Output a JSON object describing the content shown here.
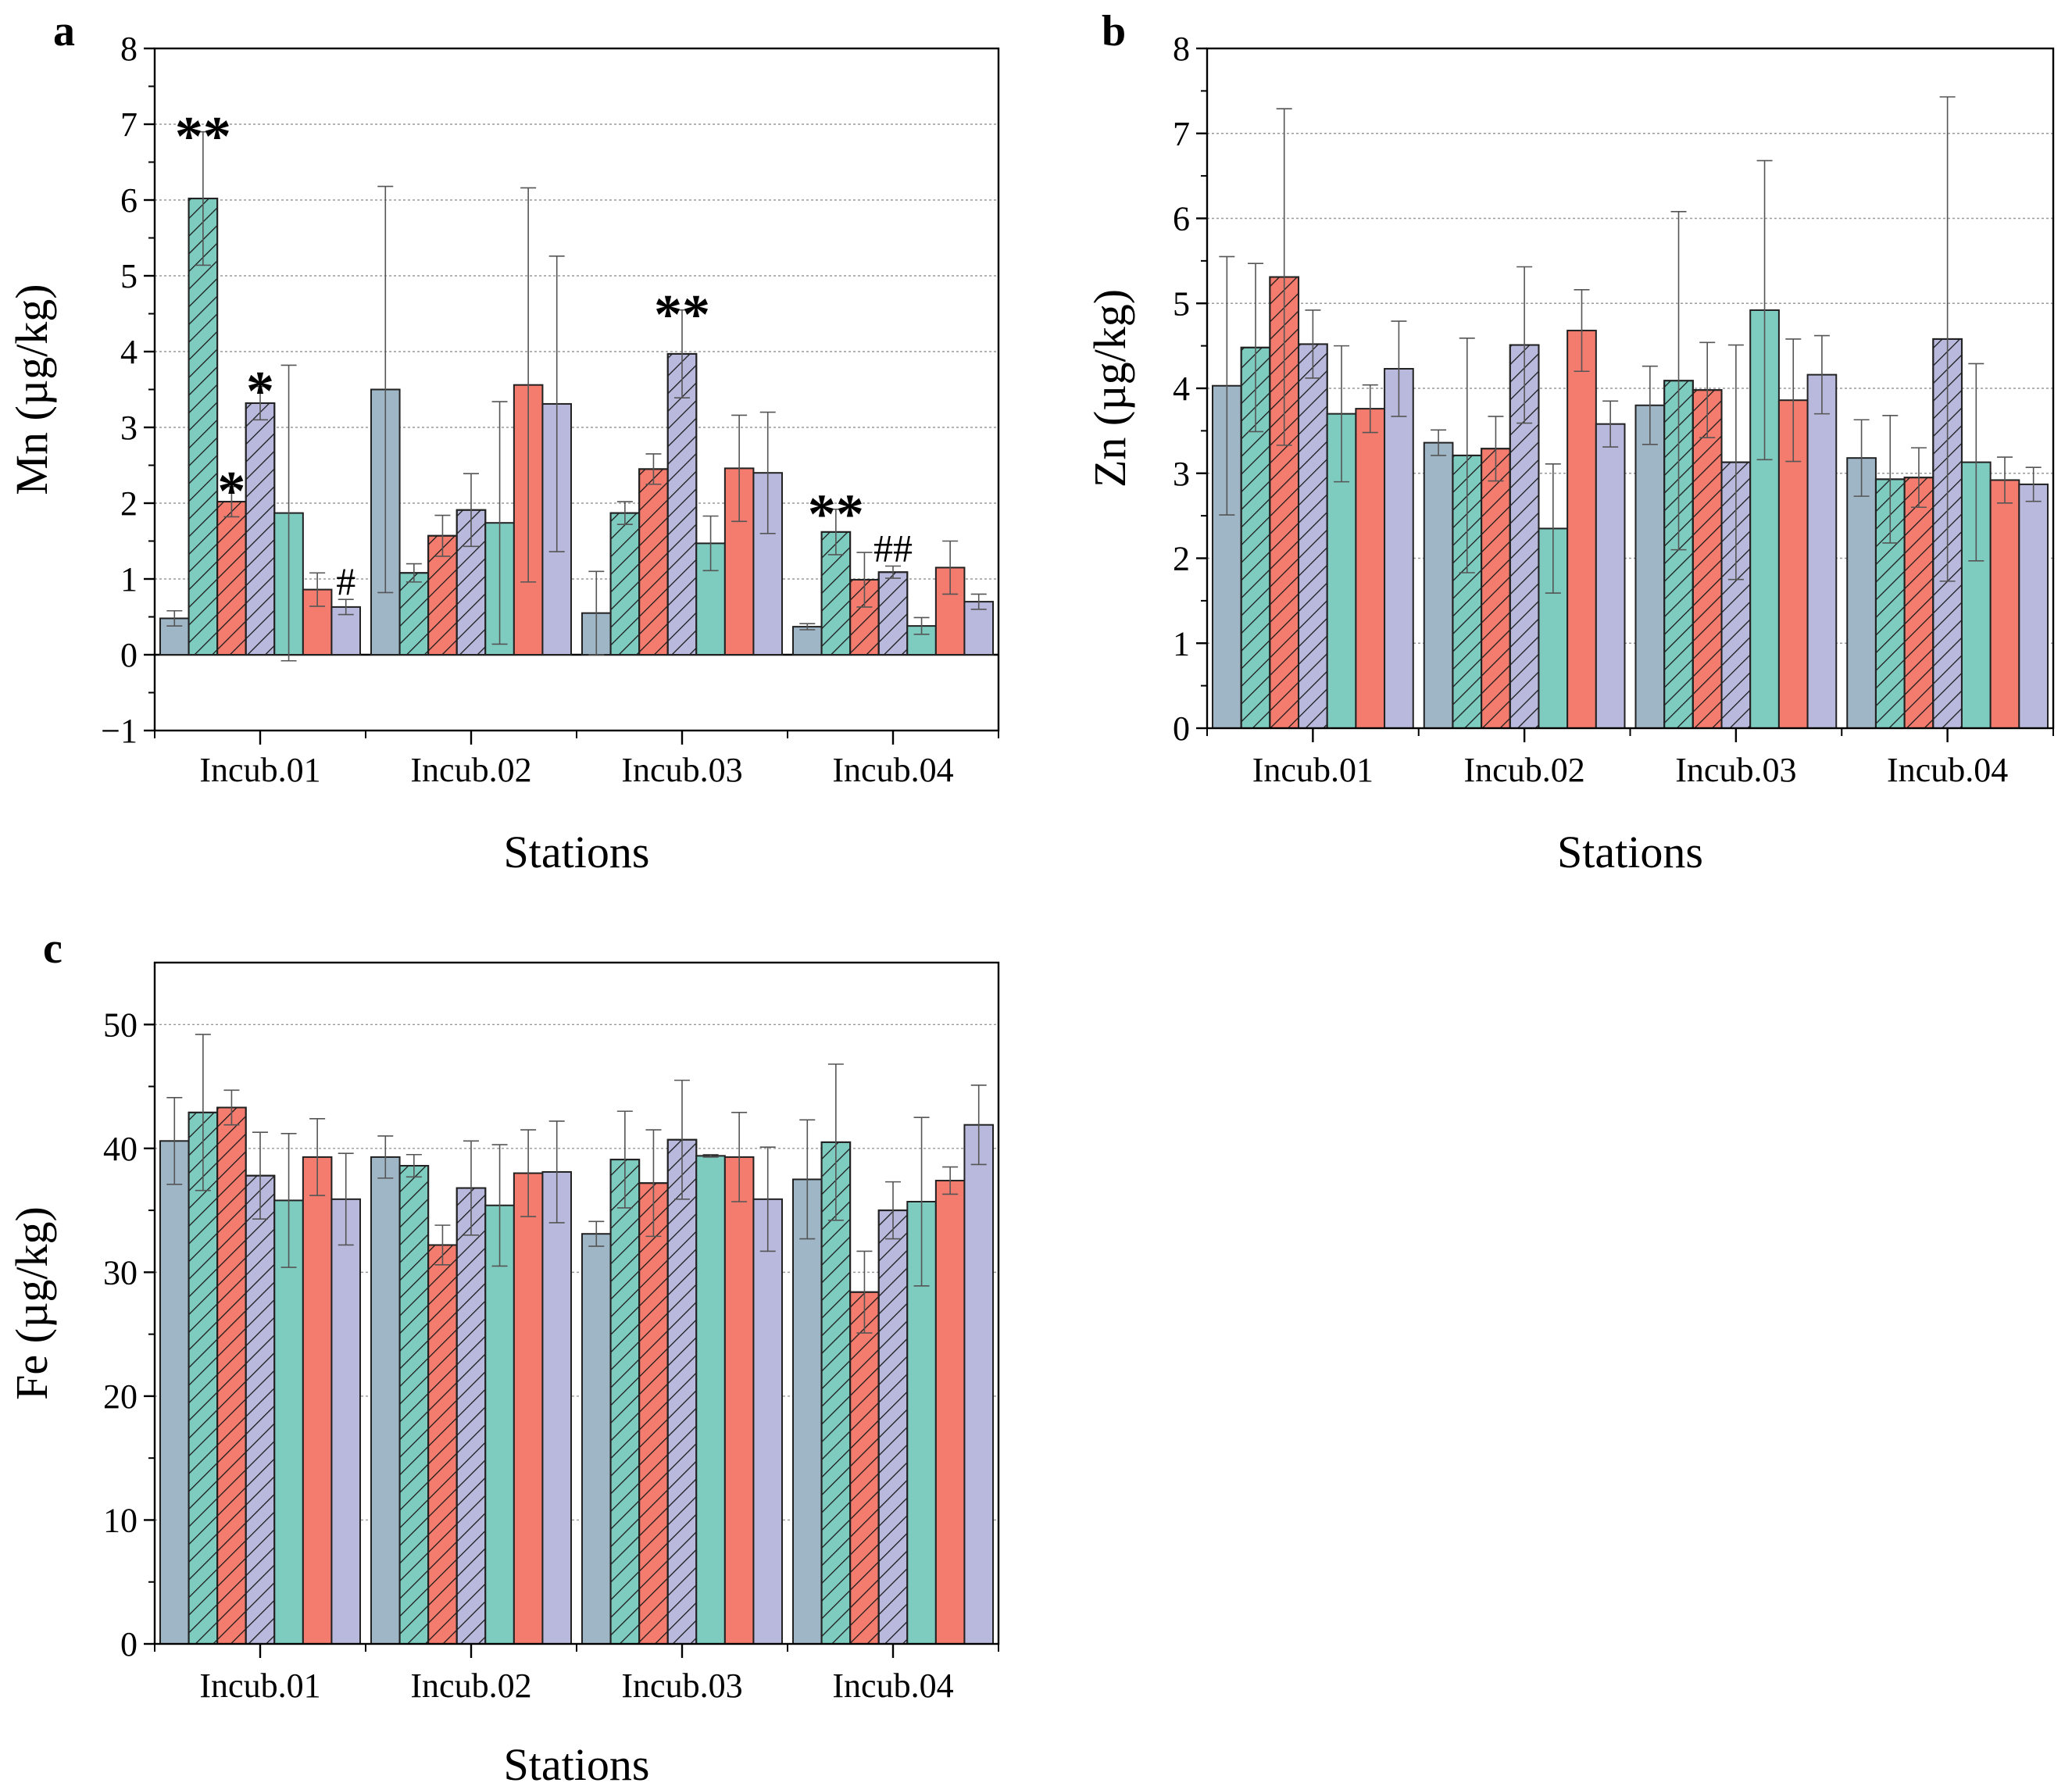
{
  "colors": {
    "blue_grey": "#9fb6c6",
    "teal": "#7ecbc0",
    "red": "#f47c6e",
    "lavender": "#b8b9dc",
    "grid": "#9a9a9a",
    "axis": "#000000"
  },
  "chart_data": [
    {
      "panel": "a",
      "type": "bar",
      "ylabel": "Mn (µg/kg)",
      "xlabel": "Stations",
      "ylim": [
        -1,
        8
      ],
      "yticks": [
        -1,
        0,
        1,
        2,
        3,
        4,
        5,
        6,
        7,
        8
      ],
      "ytick_labels": [
        "−1",
        "0",
        "1",
        "2",
        "3",
        "4",
        "5",
        "6",
        "7",
        "8"
      ],
      "grid": true,
      "categories": [
        "Incub.01",
        "Incub.02",
        "Incub.03",
        "Incub.04"
      ],
      "series": [
        {
          "pattern": "solid",
          "color": "blue_grey",
          "values": [
            0.48,
            3.5,
            0.55,
            0.37
          ],
          "errors": [
            0.1,
            2.68,
            0.55,
            0.04
          ]
        },
        {
          "pattern": "hatched",
          "color": "teal",
          "values": [
            6.02,
            1.08,
            1.87,
            1.62
          ],
          "errors": [
            0.88,
            0.12,
            0.15,
            0.3
          ]
        },
        {
          "pattern": "hatched",
          "color": "red",
          "values": [
            2.02,
            1.57,
            2.45,
            0.99
          ],
          "errors": [
            0.2,
            0.27,
            0.2,
            0.36
          ]
        },
        {
          "pattern": "hatched",
          "color": "lavender",
          "values": [
            3.32,
            1.91,
            3.97,
            1.09
          ],
          "errors": [
            0.22,
            0.48,
            0.58,
            0.08
          ]
        },
        {
          "pattern": "solid",
          "color": "teal",
          "values": [
            1.87,
            1.74,
            1.47,
            0.38
          ],
          "errors": [
            1.95,
            1.6,
            0.36,
            0.11
          ]
        },
        {
          "pattern": "solid",
          "color": "red",
          "values": [
            0.86,
            3.56,
            2.46,
            1.15
          ],
          "errors": [
            0.22,
            2.6,
            0.7,
            0.35
          ]
        },
        {
          "pattern": "solid",
          "color": "lavender",
          "values": [
            0.63,
            3.31,
            2.4,
            0.7
          ],
          "errors": [
            0.1,
            1.95,
            0.8,
            0.1
          ]
        }
      ],
      "annotations": [
        {
          "text": "**",
          "category": 0,
          "series": 1,
          "kind": "star"
        },
        {
          "text": "*",
          "category": 0,
          "series": 2,
          "kind": "star"
        },
        {
          "text": "*",
          "category": 0,
          "series": 3,
          "kind": "star"
        },
        {
          "text": "#",
          "category": 0,
          "series": 6,
          "kind": "hash"
        },
        {
          "text": "**",
          "category": 2,
          "series": 3,
          "kind": "star"
        },
        {
          "text": "**",
          "category": 3,
          "series": 1,
          "kind": "star"
        },
        {
          "text": "##",
          "category": 3,
          "series": 3,
          "kind": "hash"
        }
      ]
    },
    {
      "panel": "b",
      "type": "bar",
      "ylabel": "Zn (µg/kg)",
      "xlabel": "Stations",
      "ylim": [
        0,
        8
      ],
      "yticks": [
        0,
        1,
        2,
        3,
        4,
        5,
        6,
        7,
        8
      ],
      "ytick_labels": [
        "0",
        "1",
        "2",
        "3",
        "4",
        "5",
        "6",
        "7",
        "8"
      ],
      "grid": true,
      "categories": [
        "Incub.01",
        "Incub.02",
        "Incub.03",
        "Incub.04"
      ],
      "series": [
        {
          "pattern": "solid",
          "color": "blue_grey",
          "values": [
            4.03,
            3.36,
            3.8,
            3.18
          ],
          "errors": [
            1.52,
            0.15,
            0.46,
            0.45
          ]
        },
        {
          "pattern": "hatched",
          "color": "teal",
          "values": [
            4.48,
            3.21,
            4.09,
            2.93
          ],
          "errors": [
            0.99,
            1.38,
            1.99,
            0.75
          ]
        },
        {
          "pattern": "hatched",
          "color": "red",
          "values": [
            5.31,
            3.29,
            3.98,
            2.95
          ],
          "errors": [
            1.98,
            0.38,
            0.56,
            0.35
          ]
        },
        {
          "pattern": "hatched",
          "color": "lavender",
          "values": [
            4.52,
            4.51,
            3.13,
            4.58
          ],
          "errors": [
            0.4,
            0.92,
            1.38,
            2.85
          ]
        },
        {
          "pattern": "solid",
          "color": "teal",
          "values": [
            3.7,
            2.35,
            4.92,
            3.13
          ],
          "errors": [
            0.8,
            0.76,
            1.76,
            1.16
          ]
        },
        {
          "pattern": "solid",
          "color": "red",
          "values": [
            3.76,
            4.68,
            3.86,
            2.92
          ],
          "errors": [
            0.28,
            0.48,
            0.72,
            0.27
          ]
        },
        {
          "pattern": "solid",
          "color": "lavender",
          "values": [
            4.23,
            3.58,
            4.16,
            2.87
          ],
          "errors": [
            0.56,
            0.27,
            0.46,
            0.2
          ]
        }
      ]
    },
    {
      "panel": "c",
      "type": "bar",
      "ylabel": "Fe (µg/kg)",
      "xlabel": "Stations",
      "ylim": [
        0,
        55
      ],
      "yticks": [
        0,
        10,
        20,
        30,
        40,
        50
      ],
      "ytick_labels": [
        "0",
        "10",
        "20",
        "30",
        "40",
        "50"
      ],
      "grid": true,
      "categories": [
        "Incub.01",
        "Incub.02",
        "Incub.03",
        "Incub.04"
      ],
      "series": [
        {
          "pattern": "solid",
          "color": "blue_grey",
          "values": [
            40.6,
            39.3,
            33.1,
            37.5
          ],
          "errors": [
            3.5,
            1.7,
            1.0,
            4.8
          ]
        },
        {
          "pattern": "hatched",
          "color": "teal",
          "values": [
            42.9,
            38.6,
            39.1,
            40.5
          ],
          "errors": [
            6.3,
            0.9,
            3.9,
            6.3
          ]
        },
        {
          "pattern": "hatched",
          "color": "red",
          "values": [
            43.3,
            32.2,
            37.2,
            28.4
          ],
          "errors": [
            1.4,
            1.6,
            4.3,
            3.3
          ]
        },
        {
          "pattern": "hatched",
          "color": "lavender",
          "values": [
            37.8,
            36.8,
            40.7,
            35.0
          ],
          "errors": [
            3.5,
            3.8,
            4.8,
            2.3
          ]
        },
        {
          "pattern": "solid",
          "color": "teal",
          "values": [
            35.8,
            35.4,
            39.4,
            35.7
          ],
          "errors": [
            5.4,
            4.9,
            0.1,
            6.8
          ]
        },
        {
          "pattern": "solid",
          "color": "red",
          "values": [
            39.3,
            38.0,
            39.3,
            37.4
          ],
          "errors": [
            3.1,
            3.5,
            3.6,
            1.1
          ]
        },
        {
          "pattern": "solid",
          "color": "lavender",
          "values": [
            35.9,
            38.1,
            35.9,
            41.9
          ],
          "errors": [
            3.7,
            4.1,
            4.2,
            3.2
          ]
        }
      ]
    }
  ]
}
